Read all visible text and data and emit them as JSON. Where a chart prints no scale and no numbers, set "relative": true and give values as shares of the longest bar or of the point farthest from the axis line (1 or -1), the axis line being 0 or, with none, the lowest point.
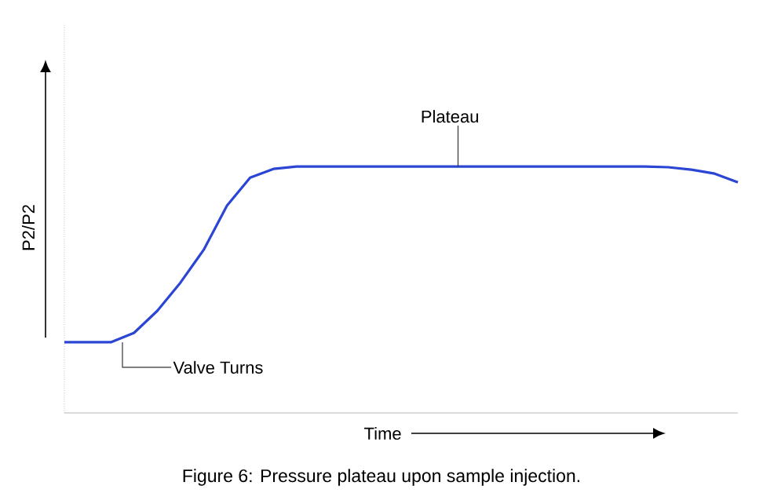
{
  "chart_data": {
    "type": "line",
    "relative": true,
    "xlabel": "Time",
    "ylabel": "P2/P2",
    "categories": [
      null,
      null,
      null,
      null,
      null,
      null,
      null,
      null,
      null,
      null,
      null,
      null,
      null,
      null,
      null,
      null,
      null,
      null,
      null,
      null,
      null,
      null,
      null,
      null,
      null,
      null,
      null,
      null,
      null,
      null
    ],
    "series": [
      {
        "color": "#2b45d4",
        "values": [
          0.287,
          0.287,
          0.287,
          0.325,
          0.414,
          0.529,
          0.662,
          0.841,
          0.955,
          0.99,
          1.0,
          1.0,
          1.0,
          1.0,
          1.0,
          1.0,
          1.0,
          1.0,
          1.0,
          1.0,
          1.0,
          1.0,
          1.0,
          1.0,
          1.0,
          1.0,
          0.997,
          0.987,
          0.971,
          0.936
        ]
      }
    ],
    "annotations": [
      "Valve Turns",
      "Plateau",
      "Figure 6: Pressure plateau upon sample injection."
    ]
  }
}
